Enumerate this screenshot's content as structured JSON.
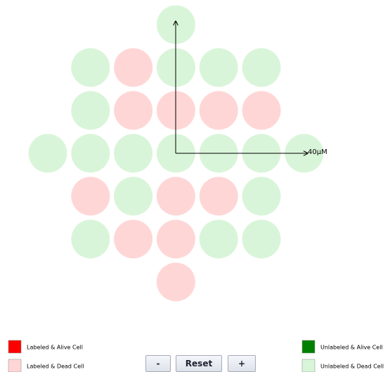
{
  "axis_label": "40μM",
  "legend": [
    {
      "label": "Labeled & Alive Cell",
      "color": "#ff0000"
    },
    {
      "label": "Labeled & Dead Cell",
      "color": "#ffd6d6"
    },
    {
      "label": "Unlabeled & Alive Cell",
      "color": "#008000"
    },
    {
      "label": "Unlabeled & Dead Cell",
      "color": "#d9f5d9"
    }
  ],
  "grid": [
    [
      null,
      null,
      null,
      "Unlabeled & Dead Cell",
      null,
      null,
      null
    ],
    [
      null,
      "Unlabeled & Dead Cell",
      "Labeled & Dead Cell",
      "Unlabeled & Dead Cell",
      "Unlabeled & Dead Cell",
      "Unlabeled & Dead Cell",
      null
    ],
    [
      null,
      "Unlabeled & Dead Cell",
      "Labeled & Dead Cell",
      "Labeled & Dead Cell",
      "Labeled & Dead Cell",
      "Labeled & Dead Cell",
      null
    ],
    [
      "Unlabeled & Dead Cell",
      "Unlabeled & Dead Cell",
      "Unlabeled & Dead Cell",
      "Unlabeled & Dead Cell",
      "Unlabeled & Dead Cell",
      "Unlabeled & Dead Cell",
      "Unlabeled & Dead Cell"
    ],
    [
      null,
      "Labeled & Dead Cell",
      "Unlabeled & Dead Cell",
      "Labeled & Dead Cell",
      "Labeled & Dead Cell",
      "Unlabeled & Dead Cell",
      null
    ],
    [
      null,
      "Unlabeled & Dead Cell",
      "Labeled & Dead Cell",
      "Labeled & Dead Cell",
      "Unlabeled & Dead Cell",
      "Unlabeled & Dead Cell",
      null
    ],
    [
      null,
      null,
      null,
      "Labeled & Dead Cell",
      null,
      null,
      null
    ]
  ],
  "buttons": [
    "-",
    "Reset",
    "+"
  ]
}
